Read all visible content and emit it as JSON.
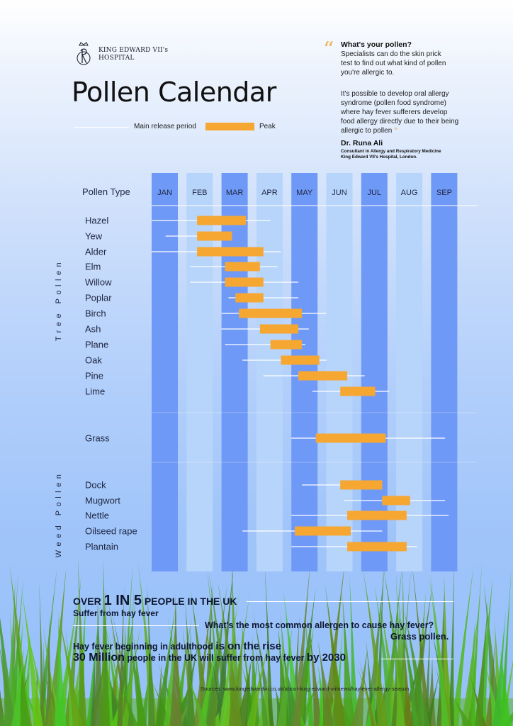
{
  "header": {
    "brand_line1": "KING EDWARD VII's",
    "brand_line2": "HOSPITAL",
    "title": "Pollen Calendar",
    "legend_main": "Main release period",
    "legend_peak": "Peak"
  },
  "quote": {
    "heading": "What's your pollen?",
    "para1": "Specialists can do the skin prick test to find out what kind of pollen you're allergic to.",
    "para2": "It's possible to develop oral allergy syndrome (pollen food syndrome) where hay fever sufferers develop food allergy directly due to their being allergic to pollen",
    "author": "Dr. Runa Ali",
    "role_line1": "Consultant in Allergy and Respiratory Medicine",
    "role_line2": "King Edward VII's Hospital, London."
  },
  "chart_data": {
    "type": "gantt",
    "column_header": "Pollen Type",
    "months": [
      "JAN",
      "FEB",
      "MAR",
      "APR",
      "MAY",
      "JUN",
      "JUL",
      "AUG",
      "SEP"
    ],
    "groups": [
      {
        "label": "Tree Pollen",
        "items": [
          "Hazel",
          "Yew",
          "Alder",
          "Elm",
          "Willow",
          "Poplar",
          "Birch",
          "Ash",
          "Plane",
          "Oak",
          "Pine",
          "Lime"
        ]
      },
      {
        "label": "",
        "items": [
          "Grass"
        ]
      },
      {
        "label": "Weed Pollen",
        "items": [
          "Dock",
          "Mugwort",
          "Nettle",
          "Oilseed rape",
          "Plantain"
        ]
      }
    ],
    "x_unit": "month (1 = start of January)",
    "series": [
      {
        "name": "Hazel",
        "main": [
          1.0,
          4.4
        ],
        "peak": [
          2.3,
          3.7
        ]
      },
      {
        "name": "Yew",
        "main": [
          1.4,
          3.3
        ],
        "peak": [
          2.3,
          3.3
        ]
      },
      {
        "name": "Alder",
        "main": [
          1.0,
          4.7
        ],
        "peak": [
          2.3,
          4.2
        ]
      },
      {
        "name": "Elm",
        "main": [
          2.1,
          4.6
        ],
        "peak": [
          3.1,
          4.1
        ]
      },
      {
        "name": "Willow",
        "main": [
          2.1,
          5.2
        ],
        "peak": [
          3.1,
          4.2
        ]
      },
      {
        "name": "Poplar",
        "main": [
          3.2,
          5.2
        ],
        "peak": [
          3.4,
          4.2
        ]
      },
      {
        "name": "Birch",
        "main": [
          3.0,
          6.0
        ],
        "peak": [
          3.5,
          5.3
        ]
      },
      {
        "name": "Ash",
        "main": [
          3.0,
          5.5
        ],
        "peak": [
          4.1,
          5.2
        ]
      },
      {
        "name": "Plane",
        "main": [
          3.1,
          5.4
        ],
        "peak": [
          4.4,
          5.3
        ]
      },
      {
        "name": "Oak",
        "main": [
          3.6,
          6.0
        ],
        "peak": [
          4.7,
          5.8
        ]
      },
      {
        "name": "Pine",
        "main": [
          4.2,
          7.1
        ],
        "peak": [
          5.2,
          6.6
        ]
      },
      {
        "name": "Lime",
        "main": [
          5.6,
          7.8
        ],
        "peak": [
          6.4,
          7.4
        ]
      },
      {
        "name": "Grass",
        "main": [
          5.0,
          9.4
        ],
        "peak": [
          5.7,
          7.7
        ]
      },
      {
        "name": "Dock",
        "main": [
          5.3,
          7.6
        ],
        "peak": [
          6.4,
          7.6
        ]
      },
      {
        "name": "Mugwort",
        "main": [
          6.5,
          9.4
        ],
        "peak": [
          7.6,
          8.4
        ]
      },
      {
        "name": "Nettle",
        "main": [
          5.0,
          9.5
        ],
        "peak": [
          6.6,
          8.3
        ]
      },
      {
        "name": "Oilseed rape",
        "main": [
          3.6,
          7.6
        ],
        "peak": [
          5.1,
          6.7
        ]
      },
      {
        "name": "Plantain",
        "main": [
          5.0,
          8.6
        ],
        "peak": [
          6.6,
          8.3
        ]
      }
    ]
  },
  "stats": {
    "s1_pre": "OVER ",
    "s1_big": "1 IN 5",
    "s1_post": " PEOPLE IN THE UK",
    "s1_sub": "Suffer from hay fever",
    "q2": "What's the most common allergen to cause hay fever?",
    "a2": "Grass pollen.",
    "s3_pre": "Hay fever beginning in adulthood ",
    "s3_big": "is on the rise",
    "s4_big": "30 Million",
    "s4_mid": " people in the UK will suffer from hay fever ",
    "s4_end": "by 2030"
  },
  "sources": "Sources: www.kingedwardvii.co.uk/about-king-edward-vii/news/hayfever-allergy-season",
  "colors": {
    "dark_column": "#6f99f7",
    "light_column": "#b7d4fb",
    "peak": "#f5a732",
    "main_line": "#ffffff",
    "grass": "#5fb42a"
  }
}
